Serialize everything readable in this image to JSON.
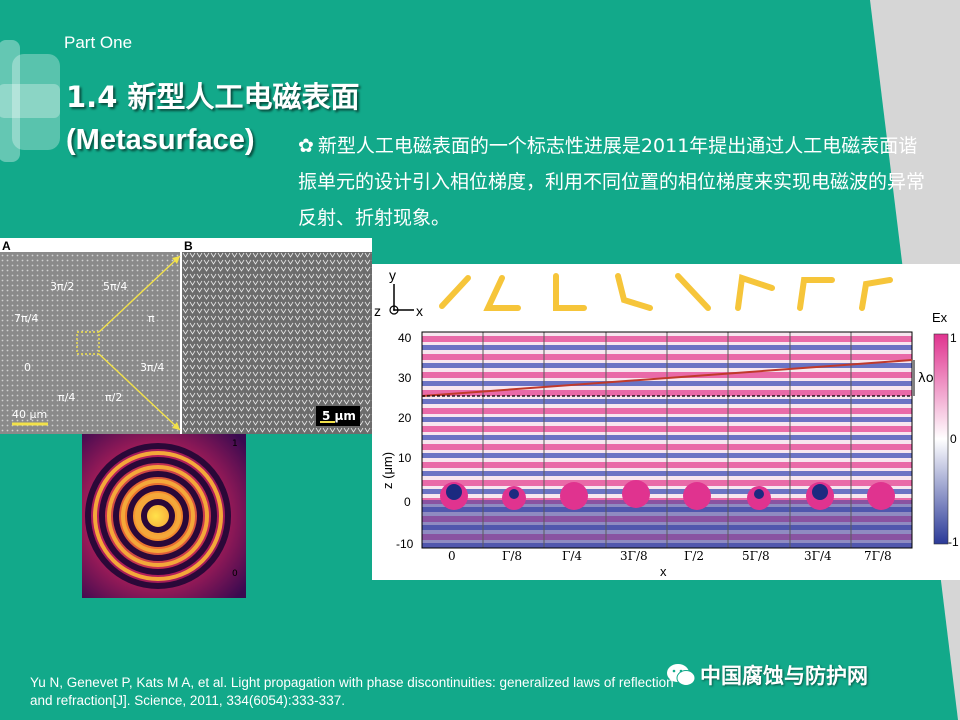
{
  "header": {
    "part": "Part One"
  },
  "title": {
    "line1": "1.4 新型人工电磁表面",
    "line2": "(Metasurface)"
  },
  "description": "新型人工电磁表面的一个标志性进展是2011年提出通过人工电磁表面谐振单元的设计引入相位梯度，利用不同位置的相位梯度来实现电磁波的异常反射、折射现象。",
  "figure_a": {
    "label": "A",
    "phases": [
      "3π/2",
      "5π/4",
      "7π/4",
      "π",
      "0",
      "3π/4",
      "π/4",
      "π/2"
    ],
    "scale": "40 μm"
  },
  "figure_b": {
    "label": "B",
    "scale": "5 μm"
  },
  "spiral": {
    "colorbar_max": "1",
    "colorbar_min": "0"
  },
  "field_plot": {
    "axis_y_label": "y",
    "axis_x_label": "x",
    "axis_z_label": "z",
    "ylabel": "z (μm)",
    "xlabel": "x",
    "yticks": [
      "40",
      "30",
      "20",
      "10",
      "0",
      "-10"
    ],
    "xticks": [
      "0",
      "Γ/8",
      "Γ/4",
      "3Γ/8",
      "Γ/2",
      "5Γ/8",
      "3Γ/4",
      "7Γ/8"
    ],
    "lambda_label": "λo",
    "colorbar_title": "Ex",
    "colorbar_ticks": [
      "1",
      "0",
      "-1"
    ]
  },
  "citation": "Yu N, Genevet P, Kats M A, et al. Light propagation with phase discontinuities: generalized laws of reflection and refraction[J]. Science, 2011, 334(6054):333-337.",
  "watermark": "中国腐蚀与防护网",
  "colors": {
    "background": "#12a98a",
    "accent_grey": "#d9d9d9",
    "field_pink": "#e0338f",
    "field_blue": "#2b3a98"
  }
}
